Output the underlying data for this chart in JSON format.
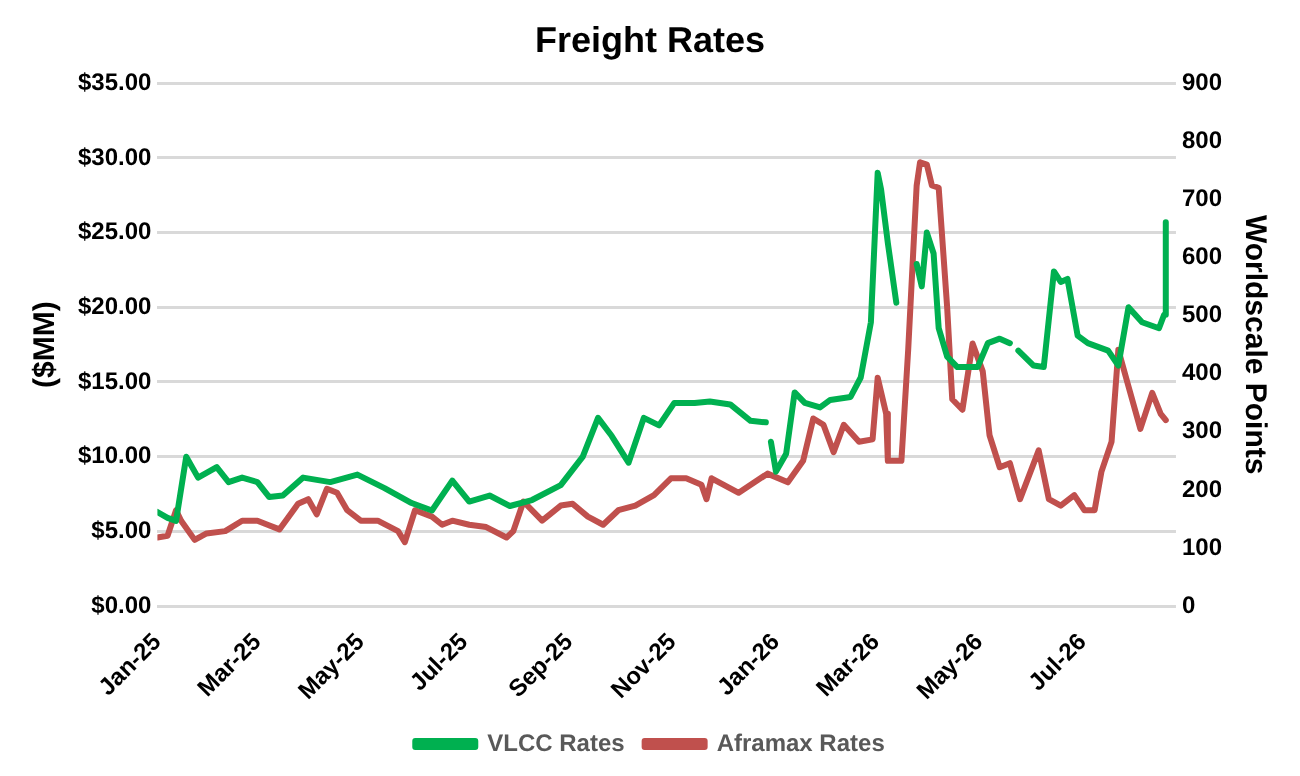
{
  "chart_data": {
    "type": "line",
    "title": "Freight Rates",
    "ylabel": "($MM)",
    "y2label": "Worldscale Points",
    "xlim": [
      "2025-01-01",
      "2026-08-25"
    ],
    "xticks": [
      {
        "value": "2025-01-01",
        "label": "Jan-25"
      },
      {
        "value": "2025-03-01",
        "label": "Mar-25"
      },
      {
        "value": "2025-05-01",
        "label": "May-25"
      },
      {
        "value": "2025-07-01",
        "label": "Jul-25"
      },
      {
        "value": "2025-09-01",
        "label": "Sep-25"
      },
      {
        "value": "2025-11-01",
        "label": "Nov-25"
      },
      {
        "value": "2026-01-01",
        "label": "Jan-26"
      },
      {
        "value": "2026-03-01",
        "label": "Mar-26"
      },
      {
        "value": "2026-05-01",
        "label": "May-26"
      },
      {
        "value": "2026-07-01",
        "label": "Jul-26"
      }
    ],
    "ylim": [
      0,
      35
    ],
    "yticks": [
      {
        "value": 0,
        "label": "$0.00"
      },
      {
        "value": 5,
        "label": "$5.00"
      },
      {
        "value": 10,
        "label": "$10.00"
      },
      {
        "value": 15,
        "label": "$15.00"
      },
      {
        "value": 20,
        "label": "$20.00"
      },
      {
        "value": 25,
        "label": "$25.00"
      },
      {
        "value": 30,
        "label": "$30.00"
      },
      {
        "value": 35,
        "label": "$35.00"
      }
    ],
    "y2lim": [
      0,
      900
    ],
    "y2ticks": [
      0,
      100,
      200,
      300,
      400,
      500,
      600,
      700,
      800,
      900
    ],
    "grid": "y",
    "legend": "bottom",
    "marker": "none",
    "line_style": "solid",
    "series": [
      {
        "name": "VLCC Rates",
        "color": "#00b050",
        "x": [
          "2025-01-01",
          "2025-01-07",
          "2025-01-12",
          "2025-01-18",
          "2025-01-25",
          "2025-02-05",
          "2025-02-12",
          "2025-02-20",
          "2025-03-01",
          "2025-03-08",
          "2025-03-16",
          "2025-03-28",
          "2025-04-13",
          "2025-04-29",
          "2025-05-15",
          "2025-05-31",
          "2025-06-12",
          "2025-06-24",
          "2025-07-04",
          "2025-07-16",
          "2025-07-28",
          "2025-08-10",
          "2025-08-27",
          "2025-09-09",
          "2025-09-18",
          "2025-09-26",
          "2025-10-06",
          "2025-10-15",
          "2025-10-24",
          "2025-11-02",
          "2025-11-14",
          "2025-11-23",
          "2025-12-05",
          "2025-12-17",
          "2025-12-26",
          "2025-12-27",
          "2025-12-29",
          "2026-01-01",
          "2026-01-07",
          "2026-01-12",
          "2026-01-18",
          "2026-01-27",
          "2026-02-02",
          "2026-02-14",
          "2026-02-20",
          "2026-02-26",
          "2026-03-02",
          "2026-03-04",
          "2026-03-08",
          "2026-03-13",
          "2026-03-18",
          "2026-03-25",
          "2026-03-28",
          "2026-03-31",
          "2026-04-04",
          "2026-04-07",
          "2026-04-12",
          "2026-04-18",
          "2026-04-30",
          "2026-05-06",
          "2026-05-13",
          "2026-05-19",
          "2026-05-21",
          "2026-05-24",
          "2026-06-02",
          "2026-06-08",
          "2026-06-14",
          "2026-06-18",
          "2026-06-22",
          "2026-06-28",
          "2026-07-04",
          "2026-07-16",
          "2026-07-22",
          "2026-07-28",
          "2026-08-05",
          "2026-08-15",
          "2026-08-18",
          "2026-08-19"
        ],
        "values": [
          6.3,
          5.9,
          5.7,
          10.0,
          8.6,
          9.3,
          8.3,
          8.6,
          8.3,
          7.3,
          7.4,
          8.6,
          8.3,
          8.8,
          7.9,
          6.9,
          6.4,
          8.4,
          7.0,
          7.4,
          6.7,
          7.1,
          8.1,
          10.0,
          12.6,
          11.4,
          9.6,
          12.6,
          12.1,
          13.6,
          13.6,
          13.7,
          13.5,
          12.4,
          12.3,
          null,
          11.0,
          9.0,
          10.2,
          14.3,
          13.6,
          13.3,
          13.8,
          14.0,
          15.3,
          19.0,
          29.0,
          27.9,
          24.3,
          20.3,
          null,
          22.9,
          21.4,
          25.0,
          23.6,
          18.6,
          16.7,
          16.0,
          16.0,
          17.6,
          17.9,
          17.6,
          null,
          17.1,
          16.1,
          16.0,
          22.4,
          21.7,
          21.9,
          18.1,
          17.6,
          17.1,
          16.1,
          20.0,
          19.0,
          18.6,
          19.5,
          25.7
        ]
      },
      {
        "name": "Aframax Rates",
        "color": "#c0504d",
        "axis": "y2",
        "x": [
          "2025-01-01",
          "2025-01-07",
          "2025-01-12",
          "2025-01-15",
          "2025-01-23",
          "2025-01-30",
          "2025-02-10",
          "2025-02-20",
          "2025-03-01",
          "2025-03-07",
          "2025-03-14",
          "2025-03-25",
          "2025-03-31",
          "2025-04-05",
          "2025-04-11",
          "2025-04-17",
          "2025-04-23",
          "2025-05-01",
          "2025-05-11",
          "2025-05-23",
          "2025-05-27",
          "2025-06-02",
          "2025-06-12",
          "2025-06-18",
          "2025-06-24",
          "2025-07-04",
          "2025-07-14",
          "2025-07-26",
          "2025-07-30",
          "2025-08-05",
          "2025-08-16",
          "2025-08-27",
          "2025-09-03",
          "2025-09-12",
          "2025-09-21",
          "2025-09-30",
          "2025-10-10",
          "2025-10-21",
          "2025-10-31",
          "2025-11-09",
          "2025-11-18",
          "2025-11-21",
          "2025-11-24",
          "2025-12-10",
          "2025-12-27",
          "2026-01-08",
          "2026-01-17",
          "2026-01-23",
          "2026-01-29",
          "2026-02-04",
          "2026-02-10",
          "2026-02-19",
          "2026-02-27",
          "2026-03-02",
          "2026-03-07",
          "2026-03-08",
          "2026-03-16",
          "2026-03-20",
          "2026-03-25",
          "2026-03-27",
          "2026-03-31",
          "2026-04-03",
          "2026-04-07",
          "2026-04-12",
          "2026-04-15",
          "2026-04-21",
          "2026-04-27",
          "2026-05-03",
          "2026-05-07",
          "2026-05-13",
          "2026-05-19",
          "2026-05-25",
          "2026-06-05",
          "2026-06-11",
          "2026-06-18",
          "2026-06-26",
          "2026-07-02",
          "2026-07-08",
          "2026-07-12",
          "2026-07-18",
          "2026-07-22",
          "2026-07-28",
          "2026-08-04",
          "2026-08-11",
          "2026-08-16",
          "2026-08-19"
        ],
        "values": [
          118,
          121,
          165,
          147,
          114,
          125,
          129,
          147,
          147,
          140,
          132,
          176,
          184,
          158,
          202,
          195,
          165,
          147,
          147,
          129,
          110,
          165,
          154,
          140,
          147,
          140,
          136,
          118,
          129,
          180,
          147,
          173,
          176,
          154,
          140,
          165,
          173,
          191,
          220,
          220,
          209,
          184,
          220,
          195,
          228,
          213,
          250,
          323,
          312,
          265,
          312,
          283,
          287,
          393,
          331,
          250,
          250,
          441,
          724,
          764,
          760,
          724,
          720,
          514,
          356,
          338,
          452,
          404,
          294,
          239,
          246,
          184,
          268,
          184,
          173,
          191,
          165,
          165,
          231,
          283,
          441,
          378,
          305,
          367,
          331,
          320
        ]
      }
    ]
  }
}
